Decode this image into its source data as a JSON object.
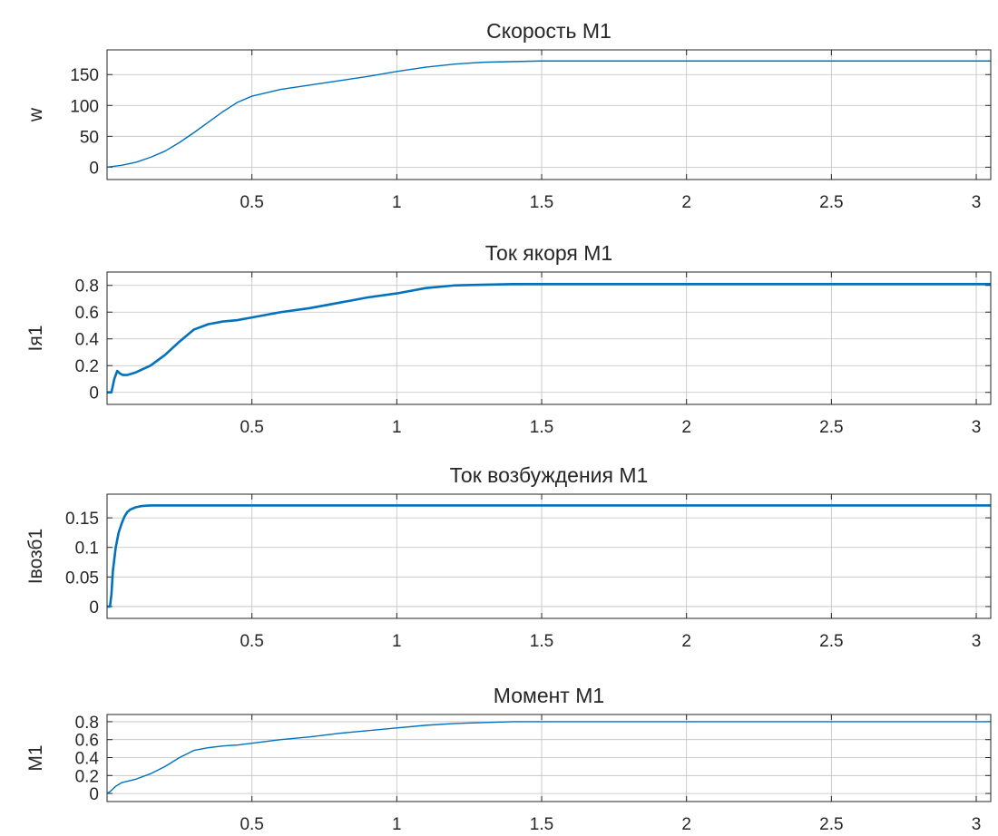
{
  "chart_data": [
    {
      "type": "line",
      "title": "Скорость М1",
      "ylabel": "w",
      "xlabel": "",
      "xlim": [
        0.0,
        3.05
      ],
      "ylim": [
        -20,
        190
      ],
      "xticks": [
        0.5,
        1,
        1.5,
        2,
        2.5,
        3
      ],
      "xticklabels": [
        "0.5",
        "1",
        "1.5",
        "2",
        "2.5",
        "3"
      ],
      "yticks": [
        0,
        50,
        100,
        150
      ],
      "yticklabels": [
        "0",
        "50",
        "100",
        "150"
      ],
      "grid": true,
      "line_width": 1.4,
      "series": [
        {
          "color": "#0072BD",
          "x": [
            0.0,
            0.05,
            0.1,
            0.15,
            0.2,
            0.25,
            0.3,
            0.35,
            0.4,
            0.45,
            0.5,
            0.6,
            0.7,
            0.8,
            0.9,
            1.0,
            1.1,
            1.2,
            1.3,
            1.5,
            2.0,
            2.5,
            3.05
          ],
          "y": [
            0,
            3,
            8,
            16,
            26,
            40,
            56,
            73,
            90,
            105,
            115,
            126,
            133,
            140,
            147,
            155,
            162,
            167,
            170,
            172,
            172,
            172,
            172
          ]
        }
      ]
    },
    {
      "type": "line",
      "title": "Ток якоря М1",
      "ylabel": "Iя1",
      "xlabel": "",
      "xlim": [
        0.0,
        3.05
      ],
      "ylim": [
        -0.09,
        0.9
      ],
      "xticks": [
        0.5,
        1,
        1.5,
        2,
        2.5,
        3
      ],
      "xticklabels": [
        "0.5",
        "1",
        "1.5",
        "2",
        "2.5",
        "3"
      ],
      "yticks": [
        0,
        0.2,
        0.4,
        0.6,
        0.8
      ],
      "yticklabels": [
        "0",
        "0.2",
        "0.4",
        "0.6",
        "0.8"
      ],
      "grid": true,
      "line_width": 2.6,
      "series": [
        {
          "color": "#0072BD",
          "x": [
            0.0,
            0.015,
            0.025,
            0.035,
            0.045,
            0.055,
            0.07,
            0.1,
            0.15,
            0.2,
            0.25,
            0.3,
            0.35,
            0.4,
            0.45,
            0.5,
            0.6,
            0.7,
            0.8,
            0.9,
            1.0,
            1.1,
            1.2,
            1.4,
            1.6,
            2.0,
            2.5,
            3.05
          ],
          "y": [
            0,
            0,
            0.1,
            0.16,
            0.14,
            0.13,
            0.13,
            0.15,
            0.2,
            0.28,
            0.38,
            0.47,
            0.51,
            0.53,
            0.54,
            0.56,
            0.6,
            0.63,
            0.67,
            0.71,
            0.74,
            0.78,
            0.8,
            0.81,
            0.81,
            0.81,
            0.81,
            0.81
          ]
        }
      ]
    },
    {
      "type": "line",
      "title": "Ток возбуждения М1",
      "ylabel": "Iвозб1",
      "xlabel": "",
      "xlim": [
        0.0,
        3.05
      ],
      "ylim": [
        -0.02,
        0.19
      ],
      "xticks": [
        0.5,
        1,
        1.5,
        2,
        2.5,
        3
      ],
      "xticklabels": [
        "0.5",
        "1",
        "1.5",
        "2",
        "2.5",
        "3"
      ],
      "yticks": [
        0,
        0.05,
        0.1,
        0.15
      ],
      "yticklabels": [
        "0",
        "0.05",
        "0.1",
        "0.15"
      ],
      "grid": true,
      "line_width": 2.6,
      "series": [
        {
          "color": "#0072BD",
          "x": [
            0.0,
            0.01,
            0.015,
            0.02,
            0.03,
            0.04,
            0.05,
            0.06,
            0.07,
            0.08,
            0.1,
            0.12,
            0.15,
            0.2,
            0.3,
            1.0,
            2.0,
            3.05
          ],
          "y": [
            0,
            0,
            0.02,
            0.06,
            0.1,
            0.125,
            0.14,
            0.152,
            0.16,
            0.164,
            0.168,
            0.17,
            0.171,
            0.171,
            0.171,
            0.171,
            0.171,
            0.171
          ]
        }
      ]
    },
    {
      "type": "line",
      "title": "Момент М1",
      "ylabel": "М1",
      "xlabel": "",
      "xlim": [
        0.0,
        3.05
      ],
      "ylim": [
        -0.09,
        0.88
      ],
      "xticks": [
        0.5,
        1,
        1.5,
        2,
        2.5,
        3
      ],
      "xticklabels": [
        "0.5",
        "1",
        "1.5",
        "2",
        "2.5",
        "3"
      ],
      "yticks": [
        0,
        0.2,
        0.4,
        0.6,
        0.8
      ],
      "yticklabels": [
        "0",
        "0.2",
        "0.4",
        "0.6",
        "0.8"
      ],
      "grid": true,
      "line_width": 1.4,
      "series": [
        {
          "color": "#0072BD",
          "x": [
            0.0,
            0.01,
            0.03,
            0.05,
            0.1,
            0.15,
            0.2,
            0.25,
            0.3,
            0.35,
            0.4,
            0.45,
            0.5,
            0.6,
            0.7,
            0.8,
            0.9,
            1.0,
            1.1,
            1.2,
            1.4,
            1.6,
            2.0,
            2.5,
            3.05
          ],
          "y": [
            0,
            0.02,
            0.08,
            0.12,
            0.16,
            0.22,
            0.3,
            0.4,
            0.48,
            0.51,
            0.53,
            0.54,
            0.56,
            0.6,
            0.63,
            0.67,
            0.7,
            0.73,
            0.76,
            0.78,
            0.8,
            0.8,
            0.8,
            0.8,
            0.8
          ]
        }
      ]
    }
  ]
}
